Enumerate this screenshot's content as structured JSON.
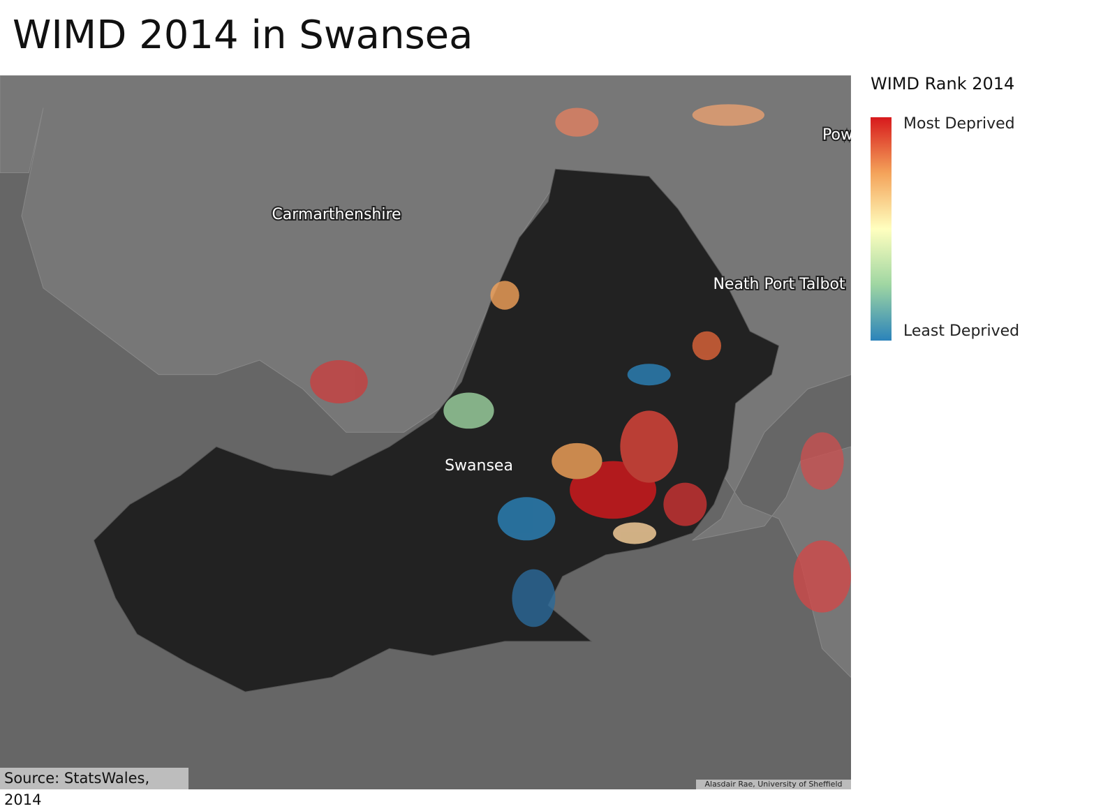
{
  "header": {
    "title": "WIMD 2014 in Swansea"
  },
  "map": {
    "labels": [
      "Carmarthenshire",
      "Neath Port Talbot",
      "Swansea",
      "Pow"
    ],
    "credit": "Alasdair Rae, University of Sheffield"
  },
  "legend": {
    "title": "WIMD Rank 2014",
    "high": "Most Deprived",
    "low": "Least Deprived"
  },
  "footer": {
    "source": "Source: StatsWales, 2014"
  }
}
